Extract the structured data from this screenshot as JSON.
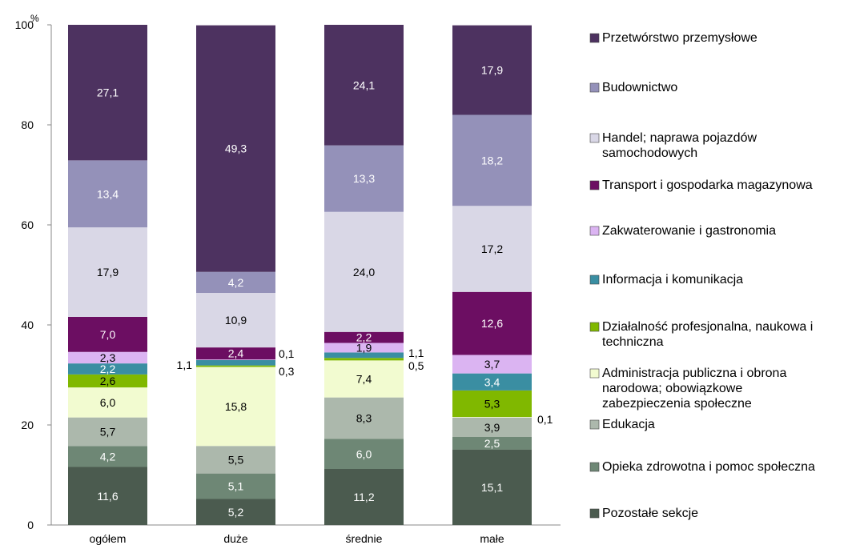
{
  "chart_data": {
    "type": "bar",
    "stacked": true,
    "percent": true,
    "y_unit": "%",
    "ylim": [
      0,
      100
    ],
    "y_ticks": [
      "0",
      "20",
      "40",
      "60",
      "80",
      "100"
    ],
    "categories": [
      "ogółem",
      "duże",
      "średnie",
      "małe"
    ],
    "legend_position": "right",
    "series": [
      {
        "name": "Pozostałe sekcje",
        "color": "#4b5b4f",
        "values": [
          11.6,
          5.2,
          11.2,
          15.1
        ],
        "labels": [
          "11,6",
          "5,2",
          "11,2",
          "15,1"
        ]
      },
      {
        "name": "Opieka zdrowotna i pomoc społeczna",
        "color": "#6e8775",
        "values": [
          4.2,
          5.1,
          6.0,
          2.5
        ],
        "labels": [
          "4,2",
          "5,1",
          "6,0",
          "2,5"
        ]
      },
      {
        "name": "Edukacja",
        "color": "#acb8ac",
        "values": [
          5.7,
          5.5,
          8.3,
          3.9
        ],
        "labels": [
          "5,7",
          "5,5",
          "8,3",
          "3,9"
        ]
      },
      {
        "name": "Administracja publiczna i obrona narodowa; obowiązkowe zabezpieczenia społeczne",
        "color": "#f2fbd0",
        "values": [
          6.0,
          15.8,
          7.4,
          0.1
        ],
        "labels": [
          "6,0",
          "15,8",
          "7,4",
          "0,1"
        ]
      },
      {
        "name": "Działalność profesjonalna, naukowa i techniczna",
        "color": "#80b800",
        "values": [
          2.6,
          0.3,
          0.5,
          5.3
        ],
        "labels": [
          "2,6",
          "0,3",
          "0,5",
          "5,3"
        ]
      },
      {
        "name": "Informacja i komunikacja",
        "color": "#3a8ea2",
        "values": [
          2.2,
          1.1,
          1.1,
          3.4
        ],
        "labels": [
          "2,2",
          "1,1",
          "1,1",
          "3,4"
        ]
      },
      {
        "name": "Zakwaterowanie i gastronomia",
        "color": "#dbb4f2",
        "values": [
          2.3,
          0.1,
          1.9,
          3.7
        ],
        "labels": [
          "2,3",
          "0,1",
          "1,9",
          "3,7"
        ]
      },
      {
        "name": "Transport i gospodarka magazynowa",
        "color": "#6c0e62",
        "values": [
          7.0,
          2.4,
          2.2,
          12.6
        ],
        "labels": [
          "7,0",
          "2,4",
          "2,2",
          "12,6"
        ]
      },
      {
        "name": "Handel; naprawa pojazdów samochodowych",
        "color": "#d9d7e6",
        "values": [
          17.9,
          10.9,
          24.0,
          17.2
        ],
        "labels": [
          "17,9",
          "10,9",
          "24,0",
          "17,2"
        ]
      },
      {
        "name": "Budownictwo",
        "color": "#9491b9",
        "values": [
          13.4,
          4.2,
          13.3,
          18.2
        ],
        "labels": [
          "13,4",
          "4,2",
          "13,3",
          "18,2"
        ]
      },
      {
        "name": "Przetwórstwo przemysłowe",
        "color": "#4d3260",
        "values": [
          27.1,
          49.3,
          24.1,
          17.9
        ],
        "labels": [
          "27,1",
          "49,3",
          "24,1",
          "17,9"
        ]
      }
    ],
    "legend_lines": [
      [
        "Przetwórstwo przemysłowe"
      ],
      [
        "Budownictwo"
      ],
      [
        "Handel; naprawa pojazdów",
        "samochodowych"
      ],
      [
        "Transport i gospodarka magazynowa"
      ],
      [
        "Zakwaterowanie i gastronomia"
      ],
      [
        "Informacja i komunikacja"
      ],
      [
        "Działalność profesjonalna, naukowa i",
        "techniczna"
      ],
      [
        "Administracja publiczna i obrona",
        "narodowa; obowiązkowe",
        "zabezpieczenia społeczne"
      ],
      [
        "Edukacja"
      ],
      [
        "Opieka zdrowotna i pomoc społeczna"
      ],
      [
        "Pozostałe sekcje"
      ]
    ]
  }
}
